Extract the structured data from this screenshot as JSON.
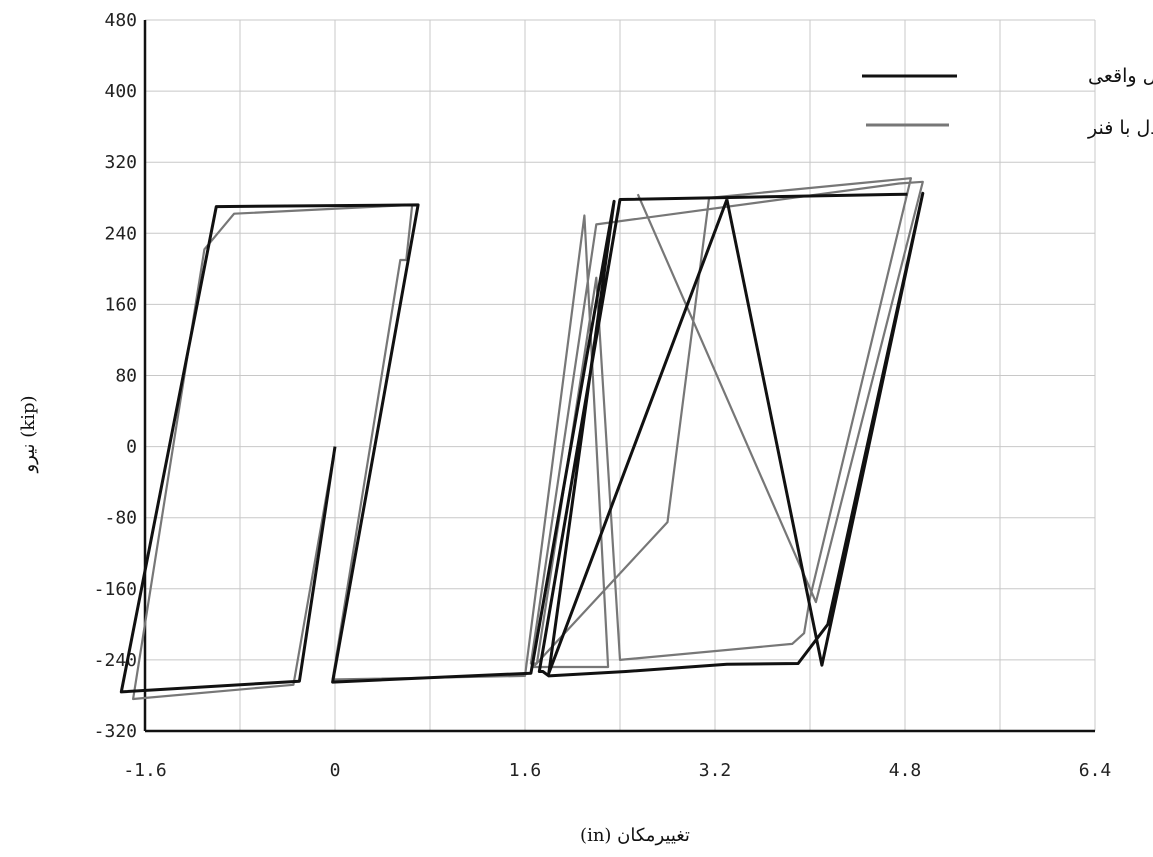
{
  "chart_data": {
    "type": "line",
    "xlabel": "تغییرمکان (in)",
    "ylabel": "نیرو (kip)",
    "xlim": [
      -1.6,
      6.4
    ],
    "ylim": [
      -320,
      480
    ],
    "xticks": [
      "-1.6",
      "0",
      "1.6",
      "3.2",
      "4.8",
      "6.4"
    ],
    "yticks": [
      "480",
      "400",
      "320",
      "240",
      "160",
      "80",
      "0",
      "-80",
      "-160",
      "-240",
      "-320"
    ],
    "grid": true,
    "legend_position": "top-right",
    "series": [
      {
        "name": "مدل واقعی",
        "color": "#111111",
        "x": [
          0,
          -0.3,
          -1.8,
          -1.0,
          0.7,
          -0.02,
          -0.02,
          1.65,
          2.35,
          1.8,
          1.8,
          3.3,
          4.1,
          4.95,
          4.95,
          4.15,
          3.9,
          3.3,
          2.45,
          1.8,
          1.75,
          1.72,
          2.4,
          4.82
        ],
        "y": [
          0,
          -264,
          -276,
          270,
          272,
          -265,
          -265,
          -255,
          276,
          -255,
          -255,
          278,
          -246,
          285,
          285,
          -200,
          -244,
          -245,
          -253,
          -258,
          -253,
          -253,
          278,
          284
        ]
      },
      {
        "name": "مدل با فنر",
        "color": "#777777",
        "x": [
          0,
          -0.35,
          -1.7,
          -1.1,
          -0.85,
          0.65,
          0.6,
          0.55,
          -0.02,
          1.6,
          2.1,
          2.3,
          1.67,
          2.8,
          3.15,
          4.85,
          4.0,
          3.95,
          3.85,
          2.4,
          2.2,
          1.7,
          1.65,
          2.2,
          4.75,
          4.95,
          4.05,
          2.55
        ],
        "y": [
          0,
          -268,
          -284,
          222,
          262,
          272,
          210,
          210,
          -262,
          -258,
          260,
          -248,
          -248,
          -85,
          280,
          302,
          -170,
          -210,
          -222,
          -240,
          190,
          -244,
          -244,
          250,
          296,
          298,
          -175,
          284
        ]
      }
    ]
  }
}
